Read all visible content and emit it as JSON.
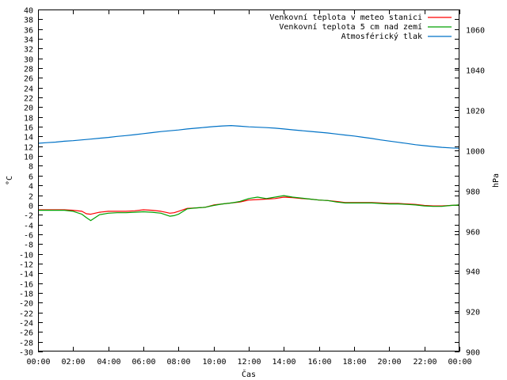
{
  "chart_data": {
    "type": "line",
    "title": "",
    "xlabel": "Čas",
    "ylabel_left": "°C",
    "ylabel_right": "hPa",
    "ylim_left": [
      -30,
      40
    ],
    "ylim_right": [
      900,
      1070
    ],
    "xlim_hours": [
      0,
      24
    ],
    "grid": false,
    "legend_position": "top-right",
    "x_tick_labels": [
      "00:00",
      "02:00",
      "04:00",
      "06:00",
      "08:00",
      "10:00",
      "12:00",
      "14:00",
      "16:00",
      "18:00",
      "20:00",
      "22:00",
      "00:00"
    ],
    "y_left_ticks": [
      40,
      38,
      36,
      34,
      32,
      30,
      28,
      26,
      24,
      22,
      20,
      18,
      16,
      14,
      12,
      10,
      8,
      6,
      4,
      2,
      0,
      -2,
      -4,
      -6,
      -8,
      -10,
      -12,
      -14,
      -16,
      -18,
      -20,
      -22,
      -24,
      -26,
      -28,
      -30
    ],
    "y_right_ticks": [
      1060,
      1040,
      1020,
      1000,
      980,
      960,
      940,
      920,
      900
    ],
    "x": [
      "00:00",
      "00:30",
      "01:00",
      "01:30",
      "02:00",
      "02:30",
      "02:45",
      "03:00",
      "03:30",
      "04:00",
      "04:30",
      "05:00",
      "05:30",
      "06:00",
      "06:30",
      "07:00",
      "07:15",
      "07:30",
      "07:45",
      "08:00",
      "08:30",
      "09:00",
      "09:30",
      "10:00",
      "10:30",
      "11:00",
      "11:30",
      "12:00",
      "12:30",
      "13:00",
      "13:30",
      "14:00",
      "14:30",
      "15:00",
      "15:30",
      "16:00",
      "16:30",
      "17:00",
      "17:30",
      "18:00",
      "18:30",
      "19:00",
      "19:30",
      "20:00",
      "20:30",
      "21:00",
      "21:30",
      "22:00",
      "22:30",
      "23:00",
      "23:30",
      "24:00"
    ],
    "series": [
      {
        "name": "Venkovní teplota v meteo stanici",
        "color": "#ff0000",
        "axis": "left",
        "values": [
          -1.0,
          -1.0,
          -1.0,
          -1.0,
          -1.1,
          -1.3,
          -1.8,
          -1.9,
          -1.5,
          -1.3,
          -1.3,
          -1.3,
          -1.2,
          -1.0,
          -1.1,
          -1.3,
          -1.5,
          -1.7,
          -1.6,
          -1.3,
          -0.7,
          -0.6,
          -0.5,
          0.0,
          0.2,
          0.4,
          0.6,
          1.0,
          1.1,
          1.2,
          1.3,
          1.6,
          1.5,
          1.3,
          1.2,
          1.0,
          0.9,
          0.7,
          0.5,
          0.5,
          0.5,
          0.5,
          0.4,
          0.3,
          0.3,
          0.2,
          0.1,
          -0.1,
          -0.2,
          -0.2,
          -0.1,
          0.0
        ]
      },
      {
        "name": "Venkovní teplota 5 cm nad zemí",
        "color": "#00a000",
        "axis": "left",
        "values": [
          -1.1,
          -1.1,
          -1.1,
          -1.1,
          -1.3,
          -1.9,
          -2.6,
          -3.2,
          -2.0,
          -1.7,
          -1.6,
          -1.6,
          -1.5,
          -1.4,
          -1.5,
          -1.7,
          -2.0,
          -2.3,
          -2.2,
          -1.9,
          -0.8,
          -0.6,
          -0.5,
          -0.1,
          0.2,
          0.4,
          0.7,
          1.3,
          1.6,
          1.3,
          1.6,
          1.9,
          1.6,
          1.4,
          1.2,
          1.0,
          0.9,
          0.6,
          0.4,
          0.4,
          0.4,
          0.4,
          0.3,
          0.2,
          0.2,
          0.1,
          0.0,
          -0.2,
          -0.3,
          -0.3,
          -0.1,
          0.0
        ]
      },
      {
        "name": "Atmosférický tlak",
        "color": "#0072c6",
        "axis": "right",
        "values": [
          1003.5,
          1003.8,
          1004.1,
          1004.5,
          1004.8,
          1005.2,
          1005.4,
          1005.6,
          1006.0,
          1006.4,
          1006.9,
          1007.3,
          1007.8,
          1008.3,
          1008.8,
          1009.3,
          1009.5,
          1009.7,
          1009.9,
          1010.1,
          1010.6,
          1011.0,
          1011.4,
          1011.8,
          1012.1,
          1012.3,
          1012.0,
          1011.7,
          1011.5,
          1011.3,
          1011.0,
          1010.6,
          1010.2,
          1009.8,
          1009.4,
          1009.0,
          1008.6,
          1008.1,
          1007.6,
          1007.1,
          1006.5,
          1005.9,
          1005.2,
          1004.6,
          1004.0,
          1003.4,
          1002.8,
          1002.3,
          1001.9,
          1001.5,
          1001.2,
          1001.0
        ]
      }
    ]
  }
}
